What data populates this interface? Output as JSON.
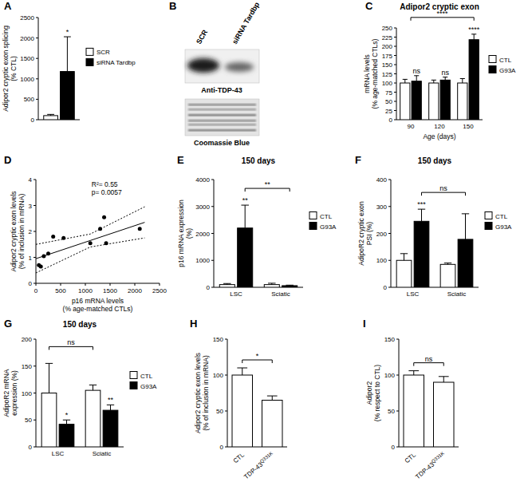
{
  "chart_data": [
    {
      "type": "bar",
      "panel": "A",
      "ylabel": [
        "Adipor2 cryptic exon splicing",
        "(% CTL)"
      ],
      "categories": [
        null
      ],
      "series": [
        {
          "name": "SCR",
          "color": "#ffffff",
          "values": [
            100
          ],
          "errors": [
            30
          ]
        },
        {
          "name": "siRNA Tardbp",
          "color": "#000000",
          "values": [
            1180
          ],
          "errors": [
            850
          ]
        }
      ],
      "ylim": [
        0,
        2500
      ],
      "yticks": [
        0,
        500,
        1000,
        1500,
        2000,
        2500
      ],
      "legend": "right",
      "annotations": [
        {
          "text": "*",
          "category": null,
          "series": "siRNA Tardbp"
        }
      ]
    },
    {
      "type": "bar",
      "panel": "C",
      "title": "Adipor2 cryptic exon",
      "xlabel": "Age (days)",
      "ylabel": [
        "mRNA levels",
        "(% age-matched CTLs)"
      ],
      "categories": [
        "90",
        "120",
        "150"
      ],
      "series": [
        {
          "name": "CTL",
          "color": "#ffffff",
          "values": [
            100,
            100,
            100
          ],
          "errors": [
            10,
            8,
            12
          ]
        },
        {
          "name": "G93A",
          "color": "#000000",
          "values": [
            105,
            108,
            218
          ],
          "errors": [
            15,
            8,
            15
          ]
        }
      ],
      "ylim": [
        0,
        250
      ],
      "yticks": [
        0,
        25,
        50,
        75,
        100,
        125,
        150,
        175,
        200,
        225,
        250
      ],
      "legend": "right",
      "annotations": [
        {
          "text": "ns",
          "category": "90",
          "series": "G93A"
        },
        {
          "text": "ns",
          "category": "120",
          "series": "G93A"
        },
        {
          "text": "****",
          "category": "150",
          "series": "G93A"
        },
        {
          "text": "****",
          "from": {
            "category": "90"
          },
          "to": {
            "category": "150",
            "series": "G93A"
          }
        }
      ]
    },
    {
      "type": "scatter",
      "panel": "D",
      "xlabel": [
        "p16 mRNA levels",
        "(% age-matched CTLs)"
      ],
      "ylabel": [
        "Adipor2 cryptic exon levels",
        "(% of inclusion in mRNA)"
      ],
      "x": [
        60,
        100,
        160,
        250,
        350,
        560,
        1100,
        1300,
        1380,
        1420,
        2100
      ],
      "values": [
        0.7,
        0.65,
        1.05,
        1.15,
        1.8,
        1.75,
        1.55,
        2.1,
        2.55,
        1.55,
        2.1
      ],
      "xlim": [
        0,
        2500
      ],
      "xticks": [
        0,
        500,
        1000,
        1500,
        2000,
        2500
      ],
      "ylim": [
        0,
        4
      ],
      "yticks": [
        0,
        1,
        2,
        3,
        4
      ],
      "color": "#000000",
      "fit": {
        "x": [
          0,
          1100,
          2200
        ],
        "values": [
          0.95,
          1.65,
          2.35
        ],
        "upper": [
          1.5,
          1.9,
          2.95
        ],
        "lower": [
          0.4,
          1.4,
          1.75
        ]
      },
      "annotations": [
        "R²= 0.55",
        "p= 0.0057"
      ]
    },
    {
      "type": "bar",
      "panel": "E",
      "title": "150 days",
      "ylabel": [
        "p16 mRNA expression",
        "(%)"
      ],
      "categories": [
        "LSC",
        "Sciatic"
      ],
      "series": [
        {
          "name": "CTL",
          "color": "#ffffff",
          "values": [
            100,
            100
          ],
          "errors": [
            40,
            50
          ]
        },
        {
          "name": "G93A",
          "color": "#000000",
          "values": [
            2200,
            60
          ],
          "errors": [
            850,
            20
          ]
        }
      ],
      "ylim": [
        0,
        4000
      ],
      "yticks": [
        0,
        1000,
        2000,
        3000,
        4000
      ],
      "legend": "right",
      "annotations": [
        {
          "text": "**",
          "category": "LSC",
          "series": "G93A"
        },
        {
          "text": "**",
          "from": {
            "category": "LSC",
            "series": "G93A"
          },
          "to": {
            "category": "Sciatic",
            "series": "G93A"
          }
        }
      ]
    },
    {
      "type": "bar",
      "panel": "F",
      "title": "150 days",
      "ylabel": [
        "AdipoR2 cryptic exon",
        "PSI (%)"
      ],
      "categories": [
        "LSC",
        "Sciatic"
      ],
      "series": [
        {
          "name": "CTL",
          "color": "#ffffff",
          "values": [
            100,
            85
          ],
          "errors": [
            25,
            5
          ]
        },
        {
          "name": "G93A",
          "color": "#000000",
          "values": [
            245,
            178
          ],
          "errors": [
            45,
            95
          ]
        }
      ],
      "ylim": [
        0,
        400
      ],
      "yticks": [
        0,
        100,
        200,
        300,
        400
      ],
      "legend": "right",
      "annotations": [
        {
          "text": "***",
          "category": "LSC",
          "series": "G93A"
        },
        {
          "text": "ns",
          "from": {
            "category": "LSC",
            "series": "G93A"
          },
          "to": {
            "category": "Sciatic",
            "series": "G93A"
          }
        }
      ]
    },
    {
      "type": "bar",
      "panel": "G",
      "title": "150 days",
      "ylabel": [
        "AdipoR2 mRNA",
        "expression (%)"
      ],
      "categories": [
        "LSC",
        "Sciatic"
      ],
      "series": [
        {
          "name": "CTL",
          "color": "#ffffff",
          "values": [
            100,
            105
          ],
          "errors": [
            55,
            10
          ]
        },
        {
          "name": "G93A",
          "color": "#000000",
          "values": [
            42,
            68
          ],
          "errors": [
            8,
            10
          ]
        }
      ],
      "ylim": [
        0,
        200
      ],
      "yticks": [
        0,
        50,
        100,
        150,
        200
      ],
      "legend": "right",
      "annotations": [
        {
          "text": "*",
          "category": "LSC",
          "series": "G93A"
        },
        {
          "text": "**",
          "category": "Sciatic",
          "series": "G93A"
        },
        {
          "text": "ns",
          "from": {
            "category": "LSC",
            "series": "CTL"
          },
          "to": {
            "category": "Sciatic",
            "series": "CTL"
          }
        }
      ]
    },
    {
      "type": "bar",
      "panel": "H",
      "ylabel": [
        "Adipor2 cryptic exon levels",
        "(% of inclusion in mRNA)"
      ],
      "categories": [
        "CTL",
        "TDP-43 Q331K"
      ],
      "values": [
        100,
        65
      ],
      "errors": [
        10,
        6
      ],
      "color": "#ffffff",
      "ylim": [
        0,
        150
      ],
      "yticks": [
        0,
        50,
        100,
        150
      ],
      "annotations": [
        {
          "text": "*",
          "from": {
            "category": "CTL"
          },
          "to": {
            "category": "TDP-43 Q331K"
          }
        }
      ]
    },
    {
      "type": "bar",
      "panel": "I",
      "ylabel": [
        "Adipor2",
        "(% respect to CTL)"
      ],
      "categories": [
        "CTL",
        "TDP-43 Q331K"
      ],
      "values": [
        100,
        90
      ],
      "errors": [
        6,
        8
      ],
      "color": "#ffffff",
      "ylim": [
        0,
        150
      ],
      "yticks": [
        0,
        50,
        100,
        150
      ],
      "annotations": [
        {
          "text": "ns",
          "from": {
            "category": "CTL"
          },
          "to": {
            "category": "TDP-43 Q331K"
          }
        }
      ]
    }
  ],
  "blot": {
    "panel": "B",
    "lanes": [
      "SCR",
      "siRNA Tardbp"
    ],
    "labels": [
      "Anti-TDP-43",
      "Coomassie Blue"
    ]
  }
}
